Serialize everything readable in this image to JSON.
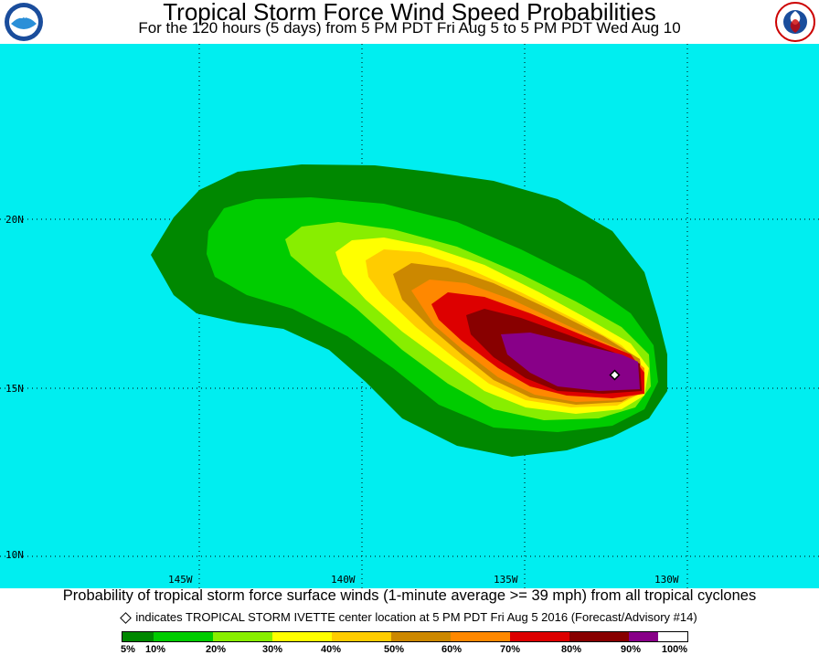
{
  "header": {
    "title": "Tropical Storm Force Wind Speed Probabilities",
    "subtitle": "For the 120 hours (5 days) from 5 PM PDT Fri Aug 5 to 5 PM PDT Wed Aug 10",
    "left_logo": "NOAA",
    "right_logo": "NATIONAL WEATHER SERVICE"
  },
  "map": {
    "background_color": "#00eef0",
    "lat_labels": [
      "20N",
      "15N",
      "10N"
    ],
    "lon_labels": [
      "145W",
      "140W",
      "135W",
      "130W"
    ],
    "storm_marker": {
      "lat": 15.4,
      "lon": 132.8,
      "name": "TROPICAL STORM IVETTE"
    }
  },
  "footer": {
    "caption": "Probability of tropical storm force surface winds (1-minute average >= 39 mph) from all tropical cyclones",
    "note": "indicates TROPICAL STORM IVETTE center location at 5 PM PDT Fri Aug 5 2016 (Forecast/Advisory #14)"
  },
  "legend": {
    "labels": [
      "5%",
      "10%",
      "20%",
      "30%",
      "40%",
      "50%",
      "60%",
      "70%",
      "80%",
      "90%",
      "100%"
    ],
    "colors": [
      "#008800",
      "#00cc00",
      "#88ee00",
      "#ffff00",
      "#ffcc00",
      "#cc8800",
      "#ff8800",
      "#dd0000",
      "#880000",
      "#880088"
    ]
  }
}
